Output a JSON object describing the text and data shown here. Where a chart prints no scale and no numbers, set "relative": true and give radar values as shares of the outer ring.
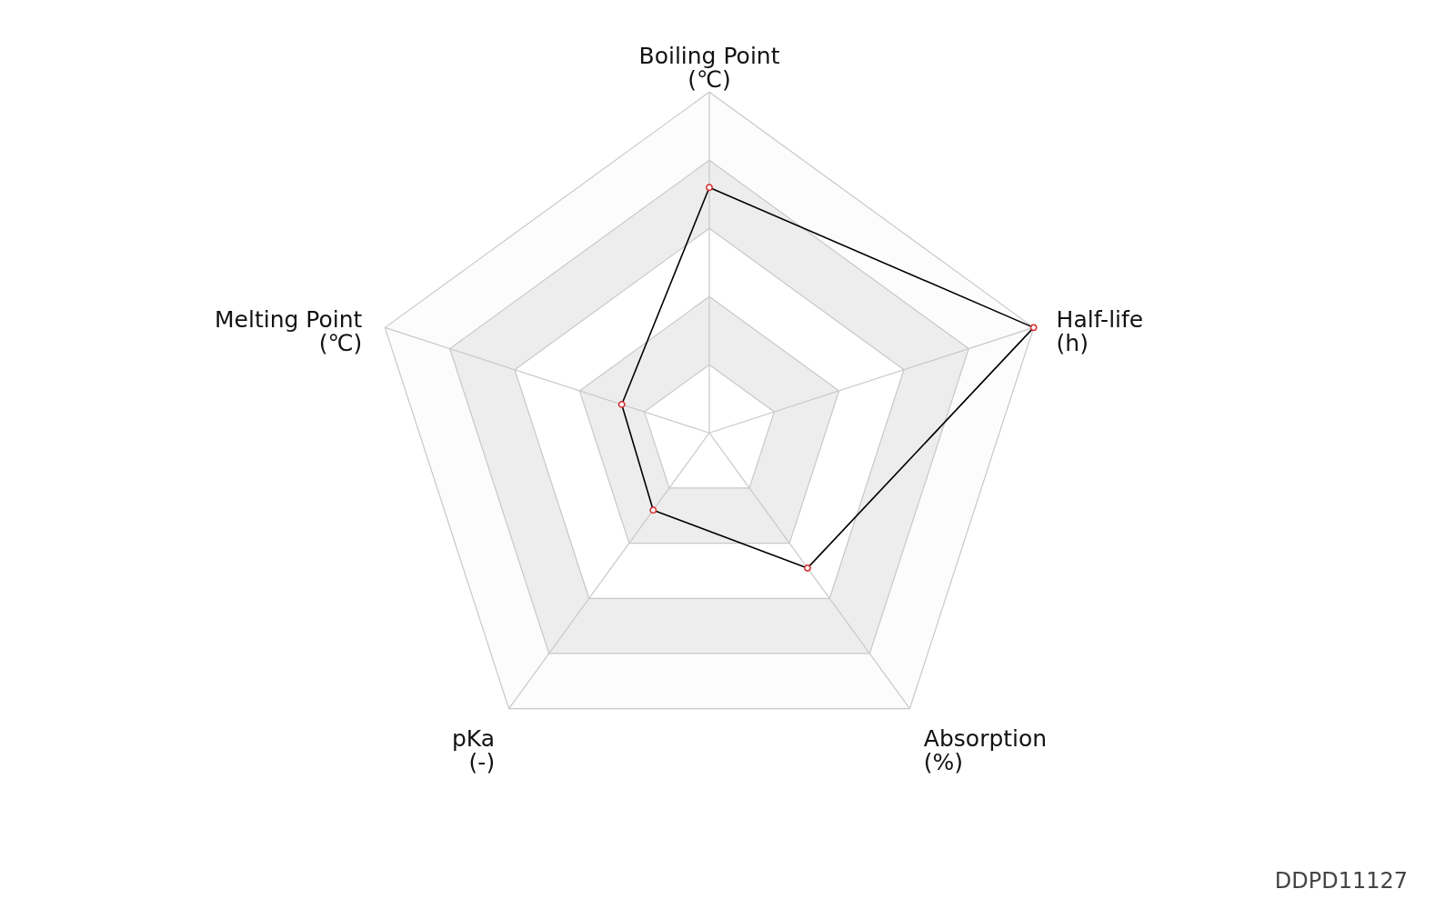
{
  "chart_data": {
    "type": "radar",
    "relative": true,
    "categories": [
      "Boiling Point\n(℃)",
      "Half-life\n(h)",
      "Absorption\n(%)",
      "pKa\n(-)",
      "Melting Point\n(℃)"
    ],
    "series": [
      {
        "color": "#000000",
        "values": [
          0.72,
          1.0,
          0.49,
          0.28,
          0.27
        ]
      }
    ],
    "marker": "circle",
    "grid": true,
    "annotations": [
      "DDPD11127"
    ]
  }
}
